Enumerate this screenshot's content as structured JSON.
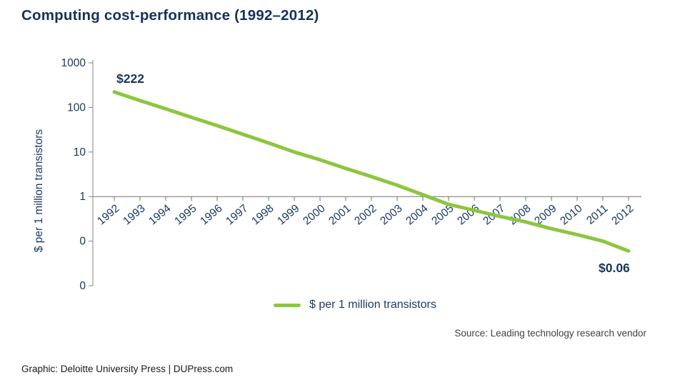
{
  "title": "Computing cost-performance (1992–2012)",
  "labels": {
    "start_value": "$222",
    "end_value": "$0.06",
    "y_axis_title": "$ per 1 million transistors",
    "legend_label": "$ per 1 million transistors"
  },
  "source": "Source: Leading technology research vendor",
  "footer": "Graphic: Deloitte University Press | DUPress.com",
  "colors": {
    "navy": "#1b3a63",
    "dark_navy": "#17375e",
    "green": "#8dc63f",
    "axis_gray": "#808080"
  },
  "chart_data": {
    "type": "line",
    "title": "Computing cost-performance (1992–2012)",
    "x": [
      "1992",
      "1993",
      "1994",
      "1995",
      "1996",
      "1997",
      "1998",
      "1999",
      "2000",
      "2001",
      "2002",
      "2003",
      "2004",
      "2005",
      "2006",
      "2007",
      "2008",
      "2009",
      "2010",
      "2011",
      "2012"
    ],
    "series": [
      {
        "name": "$ per 1 million transistors",
        "values": [
          222,
          143,
          93,
          60,
          39,
          25,
          16,
          10,
          6.7,
          4.3,
          2.8,
          1.8,
          1.1,
          0.67,
          0.49,
          0.36,
          0.27,
          0.19,
          0.14,
          0.1,
          0.06
        ]
      }
    ],
    "xlabel": "",
    "ylabel": "$ per 1 million transistors",
    "y_scale": "log",
    "ylim": [
      0.01,
      1000
    ],
    "y_tick_labels": [
      "1000",
      "100",
      "10",
      "1",
      "0",
      "0"
    ],
    "grid": false,
    "legend_position": "bottom",
    "line_color": "#8dc63f",
    "annotations": [
      {
        "text": "$222",
        "x": "1992",
        "value": 222
      },
      {
        "text": "$0.06",
        "x": "2012",
        "value": 0.06
      }
    ]
  }
}
